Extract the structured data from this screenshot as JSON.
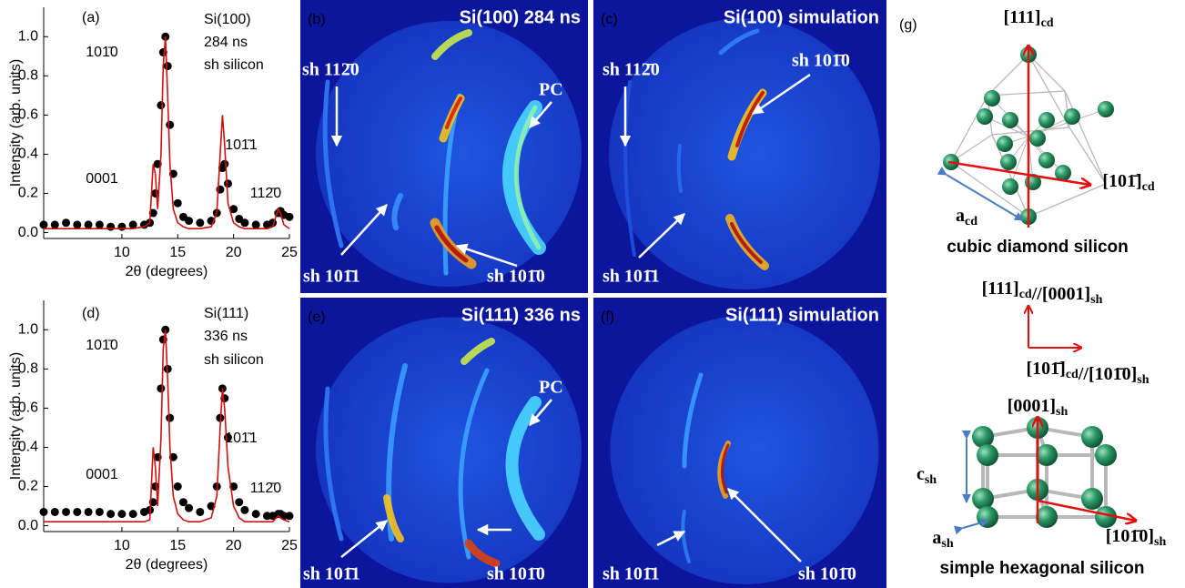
{
  "chart_data": [
    {
      "type": "line",
      "panel_label": "(a)",
      "notes": [
        "Si(100)",
        "284 ns",
        "sh silicon"
      ],
      "peak_labels": [
        "101̄0",
        "0001",
        "101̄1",
        "112̄0"
      ],
      "ylabel": "Intensity (arb. units)",
      "xlabel": "2θ (degrees)",
      "x": [
        3,
        4,
        5,
        6,
        7,
        8,
        9,
        10,
        11,
        12,
        12.5,
        12.8,
        13,
        13.2,
        13.5,
        13.7,
        13.9,
        14.1,
        14.3,
        14.6,
        15,
        15.5,
        16,
        17,
        18,
        18.5,
        18.8,
        19,
        19.2,
        19.5,
        20,
        20.5,
        21,
        22,
        23,
        23.5,
        24,
        24.2,
        24.5,
        25
      ],
      "series": [
        {
          "color": "#000000",
          "marker": "circle",
          "values": [
            0.04,
            0.04,
            0.05,
            0.04,
            0.04,
            0.04,
            0.03,
            0.03,
            0.04,
            0.04,
            0.05,
            0.1,
            0.2,
            0.35,
            0.65,
            0.92,
            1.0,
            0.85,
            0.55,
            0.3,
            0.15,
            0.08,
            0.06,
            0.05,
            0.06,
            0.1,
            0.22,
            0.33,
            0.35,
            0.25,
            0.12,
            0.07,
            0.05,
            0.04,
            0.04,
            0.05,
            0.1,
            0.11,
            0.09,
            0.08
          ]
        },
        {
          "color": "#d01010",
          "values": [
            0.02,
            0.02,
            0.02,
            0.02,
            0.02,
            0.02,
            0.02,
            0.02,
            0.02,
            0.03,
            0.05,
            0.35,
            0.3,
            0.12,
            0.4,
            0.85,
            1.0,
            0.7,
            0.35,
            0.12,
            0.05,
            0.03,
            0.02,
            0.02,
            0.03,
            0.1,
            0.4,
            0.6,
            0.45,
            0.15,
            0.05,
            0.03,
            0.02,
            0.02,
            0.02,
            0.03,
            0.12,
            0.1,
            0.04,
            0.02
          ]
        }
      ],
      "xlim": [
        3,
        25
      ],
      "xticks": [
        10,
        15,
        20,
        25
      ],
      "ylim": [
        -0.03,
        1.15
      ],
      "yticks": [
        {
          "value": 0,
          "label": "0.0"
        },
        0.2,
        0.4,
        0.6,
        0.8,
        {
          "value": 1,
          "label": "1.0"
        }
      ]
    },
    {
      "type": "line",
      "panel_label": "(d)",
      "notes": [
        "Si(111)",
        "336 ns",
        "sh silicon"
      ],
      "peak_labels": [
        "101̄0",
        "0001",
        "101̄1",
        "112̄0"
      ],
      "ylabel": "Intensity (arb. units)",
      "xlabel": "2θ (degrees)",
      "x": [
        3,
        4,
        5,
        6,
        7,
        8,
        9,
        10,
        11,
        12,
        12.5,
        12.8,
        13,
        13.2,
        13.5,
        13.7,
        13.9,
        14.1,
        14.3,
        14.6,
        15,
        15.5,
        16,
        17,
        18,
        18.5,
        18.8,
        19,
        19.2,
        19.5,
        20,
        20.5,
        21,
        22,
        23,
        23.5,
        24,
        24.2,
        24.5,
        25
      ],
      "series": [
        {
          "color": "#000000",
          "marker": "circle",
          "values": [
            0.07,
            0.07,
            0.07,
            0.07,
            0.07,
            0.07,
            0.06,
            0.06,
            0.06,
            0.07,
            0.08,
            0.12,
            0.2,
            0.35,
            0.7,
            0.95,
            1.0,
            0.8,
            0.55,
            0.35,
            0.2,
            0.12,
            0.09,
            0.07,
            0.1,
            0.2,
            0.55,
            0.7,
            0.65,
            0.45,
            0.2,
            0.12,
            0.08,
            0.06,
            0.05,
            0.05,
            0.06,
            0.06,
            0.05,
            0.05
          ]
        },
        {
          "color": "#d01010",
          "values": [
            0.02,
            0.02,
            0.02,
            0.02,
            0.02,
            0.02,
            0.02,
            0.02,
            0.02,
            0.02,
            0.03,
            0.4,
            0.3,
            0.1,
            0.45,
            0.9,
            1.0,
            0.75,
            0.4,
            0.15,
            0.06,
            0.03,
            0.02,
            0.02,
            0.04,
            0.15,
            0.5,
            0.7,
            0.6,
            0.3,
            0.1,
            0.04,
            0.02,
            0.02,
            0.02,
            0.02,
            0.05,
            0.04,
            0.03,
            0.02
          ]
        }
      ],
      "xlim": [
        3,
        25
      ],
      "xticks": [
        10,
        15,
        20,
        25
      ],
      "ylim": [
        -0.03,
        1.15
      ],
      "yticks": [
        {
          "value": 0,
          "label": "0.0"
        },
        0.2,
        0.4,
        0.6,
        0.8,
        {
          "value": 1,
          "label": "1.0"
        }
      ]
    }
  ],
  "images": [
    {
      "label": "(b)",
      "title": "Si(100) 284 ns",
      "annotations": [
        "sh 112̄0",
        "PC",
        "sh 101̄1",
        "sh 101̄0"
      ]
    },
    {
      "label": "(c)",
      "title": "Si(100) simulation",
      "annotations": [
        "sh 112̄0",
        "sh 101̄0",
        "sh 101̄1"
      ]
    },
    {
      "label": "(e)",
      "title": "Si(111) 336 ns",
      "annotations": [
        "PC",
        "sh 101̄1",
        "sh 101̄0"
      ]
    },
    {
      "label": "(f)",
      "title": "Si(111) simulation",
      "annotations": [
        "sh 101̄1",
        "sh 101̄0"
      ]
    }
  ],
  "structure": {
    "label": "(g)",
    "labels": [
      {
        "parts": [
          {
            "text": "[111]",
            "sub": "cd"
          }
        ]
      },
      {
        "parts": [
          {
            "text": "[101̄]",
            "sub": "cd"
          }
        ]
      },
      {
        "parts": [
          {
            "text": "a",
            "sub": "cd"
          }
        ]
      },
      {
        "parts": [
          {
            "text": "[111]",
            "sub": "cd"
          },
          {
            "text": "//[0001]",
            "sub": "sh"
          }
        ]
      },
      {
        "parts": [
          {
            "text": "[101̄]",
            "sub": "cd"
          },
          {
            "text": "//[101̄0]",
            "sub": "sh"
          }
        ]
      },
      {
        "parts": [
          {
            "text": "[0001]",
            "sub": "sh"
          }
        ]
      },
      {
        "parts": [
          {
            "text": "c",
            "sub": "sh"
          }
        ]
      },
      {
        "parts": [
          {
            "text": "a",
            "sub": "sh"
          }
        ]
      },
      {
        "parts": [
          {
            "text": "[101̄0]",
            "sub": "sh"
          }
        ]
      }
    ],
    "captions": [
      "cubic diamond silicon",
      "simple hexagonal silicon"
    ]
  }
}
